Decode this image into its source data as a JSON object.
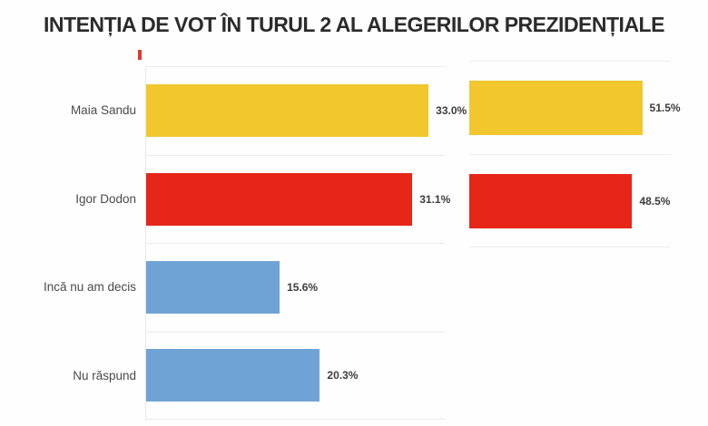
{
  "title": "INTENȚIA DE VOT ÎN TURUL 2 AL ALEGERILOR PREZIDENȚIALE",
  "colors": {
    "yellow": "#F2C72E",
    "red": "#E52619",
    "blue": "#6FA3D6",
    "gridline": "#EDEDED",
    "tick_mark": "#E0392F"
  },
  "chart_data": [
    {
      "type": "bar",
      "orientation": "horizontal",
      "categories": [
        "Maia Sandu",
        "Igor Dodon",
        "Incă nu am decis",
        "Nu răspund"
      ],
      "values": [
        33.0,
        31.1,
        15.6,
        20.3
      ],
      "value_labels": [
        "33.0%",
        "31.1%",
        "15.6%",
        "20.3%"
      ],
      "bar_colors": [
        "#F2C72E",
        "#E52619",
        "#6FA3D6",
        "#6FA3D6"
      ],
      "xlim": [
        0,
        35
      ],
      "grid": true,
      "legend": "none"
    },
    {
      "type": "bar",
      "orientation": "horizontal",
      "categories": [
        "Maia Sandu",
        "Igor Dodon"
      ],
      "values": [
        51.5,
        48.5
      ],
      "value_labels": [
        "51.5%",
        "48.5%"
      ],
      "bar_colors": [
        "#F2C72E",
        "#E52619"
      ],
      "xlim": [
        0,
        60
      ],
      "grid": true,
      "legend": "none"
    }
  ]
}
